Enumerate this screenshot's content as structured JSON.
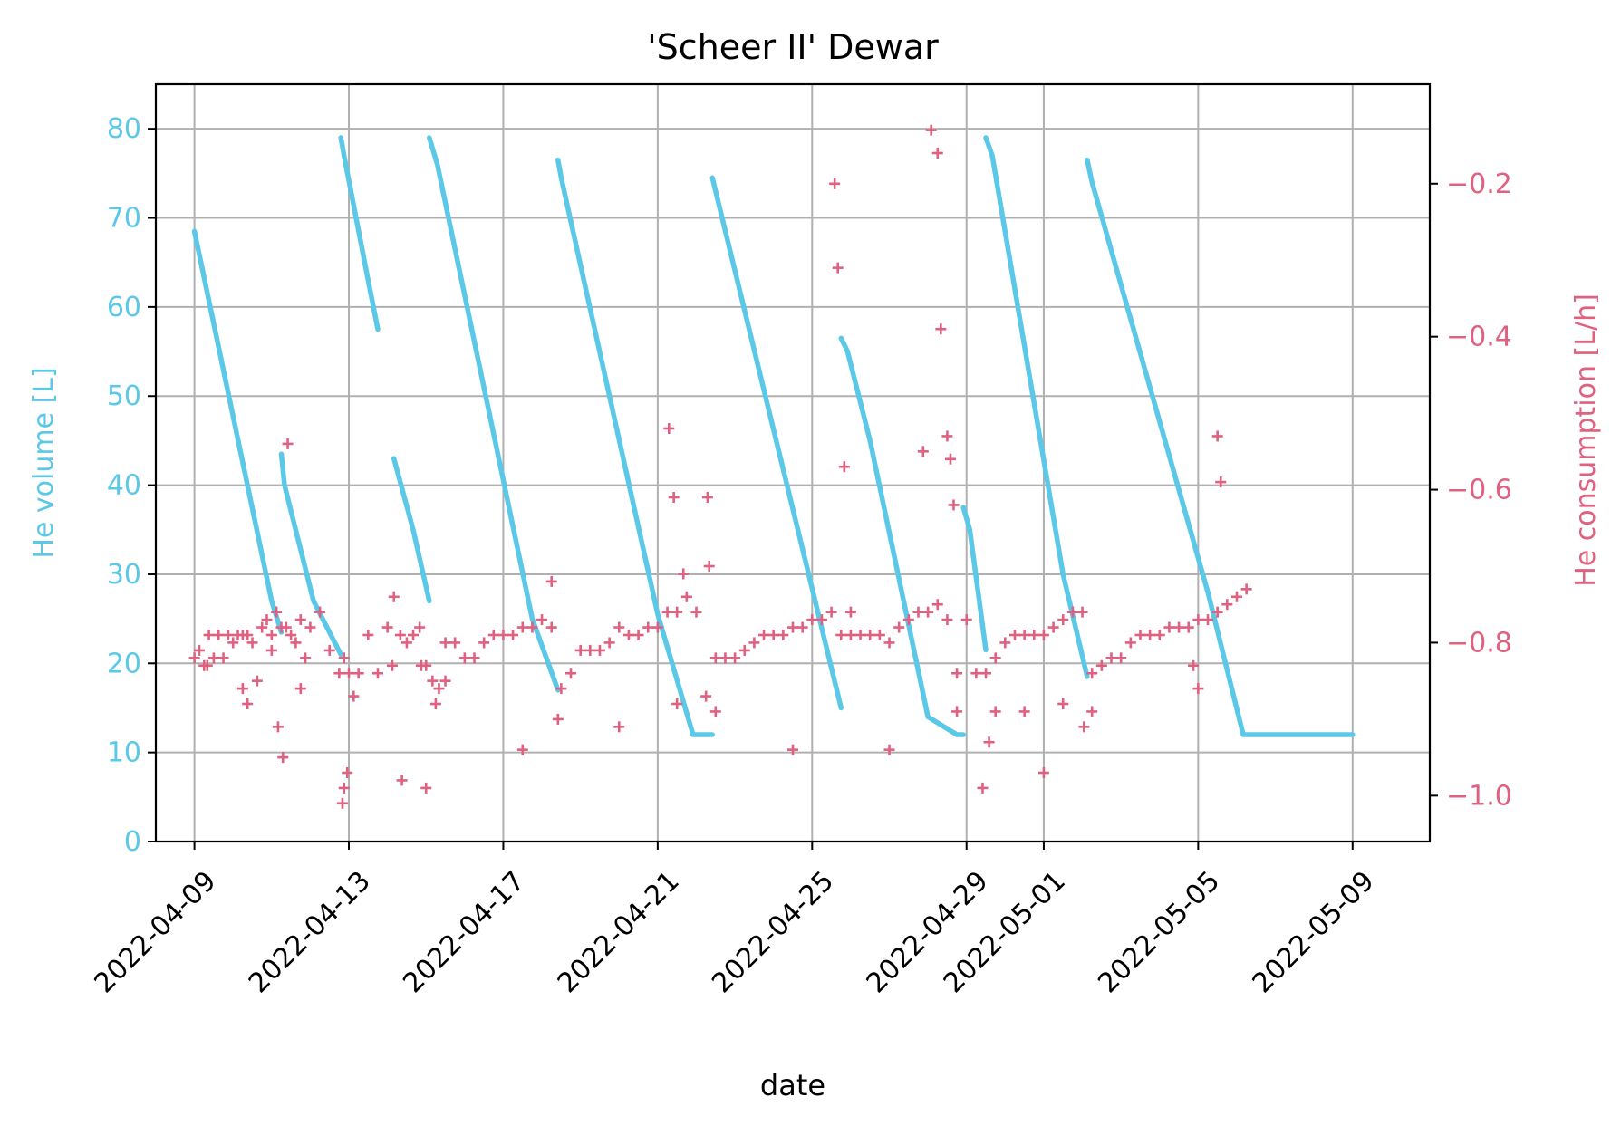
{
  "chart_data": {
    "type": "scatter",
    "title": "'Scheer II' Dewar",
    "xlabel": "date",
    "ylabel_left": "He volume [L]",
    "ylabel_right": "He consumption [L/h]",
    "x_axis": {
      "type": "date",
      "range": [
        "2022-04-08T00:00",
        "2022-05-11T00:00"
      ],
      "ticks": [
        "2022-04-09",
        "2022-04-13",
        "2022-04-17",
        "2022-04-21",
        "2022-04-25",
        "2022-04-29",
        "2022-05-01",
        "2022-05-05",
        "2022-05-09"
      ]
    },
    "y_left": {
      "range": [
        0,
        85
      ],
      "ticks": [
        "0",
        "10",
        "20",
        "30",
        "40",
        "50",
        "60",
        "70",
        "80"
      ]
    },
    "y_right": {
      "range": [
        -1.06,
        -0.07
      ],
      "ticks": [
        "−1.0",
        "−0.8",
        "−0.6",
        "−0.4",
        "−0.2"
      ]
    },
    "grid": true,
    "colors": {
      "volume": "#5bc8e8",
      "consumption": "#e06080",
      "text": "#000000",
      "grid": "#b0b0b0"
    },
    "series": [
      {
        "axis": "left",
        "marker": "dot",
        "color": "#5bc8e8",
        "segments": [
          {
            "x": [
              "2022-04-09T00:00",
              "2022-04-11T00:00",
              "2022-04-11T06:00"
            ],
            "y": [
              68.5,
              27,
              23.5
            ]
          },
          {
            "x": [
              "2022-04-11T06:00",
              "2022-04-11T08:00",
              "2022-04-12T02:00",
              "2022-04-12T19:00"
            ],
            "y": [
              43.5,
              40,
              27,
              21
            ]
          },
          {
            "x": [
              "2022-04-12T19:00",
              "2022-04-12T21:00",
              "2022-04-13T12:00",
              "2022-04-13T18:00"
            ],
            "y": [
              79,
              77,
              63,
              57.5
            ]
          },
          {
            "x": [
              "2022-04-14T04:00",
              "2022-04-14T16:00",
              "2022-04-15T02:00"
            ],
            "y": [
              43,
              35,
              27
            ]
          },
          {
            "x": [
              "2022-04-15T02:00",
              "2022-04-15T07:00",
              "2022-04-17T18:00",
              "2022-04-18T10:00"
            ],
            "y": [
              79,
              76,
              25,
              17
            ]
          },
          {
            "x": [
              "2022-04-18T10:00",
              "2022-04-18T12:00",
              "2022-04-21T00:00",
              "2022-04-21T22:00"
            ],
            "y": [
              76.5,
              74.5,
              25.5,
              12
            ]
          },
          {
            "x": [
              "2022-04-21T22:00",
              "2022-04-22T10:00"
            ],
            "y": [
              12,
              12
            ]
          },
          {
            "x": [
              "2022-04-22T10:00",
              "2022-04-22T12:00",
              "2022-04-25T18:00"
            ],
            "y": [
              74.5,
              73,
              15
            ]
          },
          {
            "x": [
              "2022-04-25T18:00",
              "2022-04-25T22:00",
              "2022-04-26T12:00",
              "2022-04-28T00:00",
              "2022-04-28T18:00"
            ],
            "y": [
              56.5,
              55,
              45,
              14,
              12
            ]
          },
          {
            "x": [
              "2022-04-28T18:00",
              "2022-04-28T22:00"
            ],
            "y": [
              12,
              12
            ]
          },
          {
            "x": [
              "2022-04-28T22:00",
              "2022-04-29T02:00",
              "2022-04-29T12:00"
            ],
            "y": [
              37.5,
              35,
              21.5
            ]
          },
          {
            "x": [
              "2022-04-29T12:00",
              "2022-04-29T16:00",
              "2022-05-01T12:00",
              "2022-05-02T03:00"
            ],
            "y": [
              79,
              77,
              30,
              18.5
            ]
          },
          {
            "x": [
              "2022-05-02T03:00",
              "2022-05-02T06:00",
              "2022-05-05T06:00",
              "2022-05-06T04:00"
            ],
            "y": [
              76.5,
              74,
              28,
              12
            ]
          },
          {
            "x": [
              "2022-05-06T04:00",
              "2022-05-09T00:00"
            ],
            "y": [
              12,
              12
            ]
          }
        ]
      },
      {
        "axis": "right",
        "marker": "plus",
        "color": "#e06080",
        "x": [
          "2022-04-09T00:00",
          "2022-04-09T03:00",
          "2022-04-09T06:00",
          "2022-04-09T09:00",
          "2022-04-09T12:00",
          "2022-04-09T15:00",
          "2022-04-09T18:00",
          "2022-04-09T21:00",
          "2022-04-10T00:00",
          "2022-04-10T03:00",
          "2022-04-10T06:00",
          "2022-04-10T09:00",
          "2022-04-10T12:00",
          "2022-04-10T15:00",
          "2022-04-10T18:00",
          "2022-04-10T21:00",
          "2022-04-11T00:00",
          "2022-04-11T03:00",
          "2022-04-11T06:00",
          "2022-04-11T09:00",
          "2022-04-11T12:00",
          "2022-04-11T15:00",
          "2022-04-11T18:00",
          "2022-04-11T21:00",
          "2022-04-12T00:00",
          "2022-04-12T06:00",
          "2022-04-12T12:00",
          "2022-04-12T18:00",
          "2022-04-12T21:00",
          "2022-04-13T00:00",
          "2022-04-13T06:00",
          "2022-04-13T12:00",
          "2022-04-13T18:00",
          "2022-04-14T00:00",
          "2022-04-14T04:00",
          "2022-04-14T08:00",
          "2022-04-14T12:00",
          "2022-04-14T16:00",
          "2022-04-14T20:00",
          "2022-04-15T00:00",
          "2022-04-15T04:00",
          "2022-04-15T08:00",
          "2022-04-15T12:00",
          "2022-04-15T18:00",
          "2022-04-16T00:00",
          "2022-04-16T06:00",
          "2022-04-16T12:00",
          "2022-04-16T18:00",
          "2022-04-17T00:00",
          "2022-04-17T06:00",
          "2022-04-17T12:00",
          "2022-04-17T18:00",
          "2022-04-18T00:00",
          "2022-04-18T06:00",
          "2022-04-18T12:00",
          "2022-04-18T18:00",
          "2022-04-19T00:00",
          "2022-04-19T06:00",
          "2022-04-19T12:00",
          "2022-04-19T18:00",
          "2022-04-20T00:00",
          "2022-04-20T06:00",
          "2022-04-20T12:00",
          "2022-04-20T18:00",
          "2022-04-21T00:00",
          "2022-04-21T06:00",
          "2022-04-21T12:00",
          "2022-04-21T18:00",
          "2022-04-22T00:00",
          "2022-04-22T06:00",
          "2022-04-22T12:00",
          "2022-04-22T18:00",
          "2022-04-23T00:00",
          "2022-04-23T06:00",
          "2022-04-23T12:00",
          "2022-04-23T18:00",
          "2022-04-24T00:00",
          "2022-04-24T06:00",
          "2022-04-24T12:00",
          "2022-04-24T18:00",
          "2022-04-25T00:00",
          "2022-04-25T06:00",
          "2022-04-25T12:00",
          "2022-04-25T18:00",
          "2022-04-26T00:00",
          "2022-04-26T06:00",
          "2022-04-26T12:00",
          "2022-04-26T18:00",
          "2022-04-27T00:00",
          "2022-04-27T06:00",
          "2022-04-27T12:00",
          "2022-04-27T18:00",
          "2022-04-28T00:00",
          "2022-04-28T06:00",
          "2022-04-28T12:00",
          "2022-04-28T18:00",
          "2022-04-29T00:00",
          "2022-04-29T06:00",
          "2022-04-29T12:00",
          "2022-04-29T18:00",
          "2022-04-30T00:00",
          "2022-04-30T06:00",
          "2022-04-30T12:00",
          "2022-04-30T18:00",
          "2022-05-01T00:00",
          "2022-05-01T06:00",
          "2022-05-01T12:00",
          "2022-05-01T18:00",
          "2022-05-02T00:00",
          "2022-05-02T06:00",
          "2022-05-02T12:00",
          "2022-05-02T18:00",
          "2022-05-03T00:00",
          "2022-05-03T06:00",
          "2022-05-03T12:00",
          "2022-05-03T18:00",
          "2022-05-04T00:00",
          "2022-05-04T06:00",
          "2022-05-04T12:00",
          "2022-05-04T18:00",
          "2022-05-05T00:00",
          "2022-05-05T06:00",
          "2022-05-05T12:00",
          "2022-05-05T18:00",
          "2022-05-06T00:00",
          "2022-05-06T06:00"
        ],
        "y": [
          -0.82,
          -0.81,
          -0.83,
          -0.79,
          -0.82,
          -0.79,
          -0.82,
          -0.79,
          -0.8,
          -0.79,
          -0.79,
          -0.79,
          -0.8,
          -0.85,
          -0.78,
          -0.77,
          -0.79,
          -0.76,
          -0.78,
          -0.78,
          -0.79,
          -0.8,
          -0.77,
          -0.82,
          -0.78,
          -0.76,
          -0.81,
          -0.84,
          -0.82,
          -0.84,
          -0.84,
          -0.79,
          -0.84,
          -0.78,
          -0.74,
          -0.79,
          -0.8,
          -0.79,
          -0.78,
          -0.83,
          -0.85,
          -0.86,
          -0.8,
          -0.8,
          -0.82,
          -0.82,
          -0.8,
          -0.79,
          -0.79,
          -0.79,
          -0.78,
          -0.78,
          -0.77,
          -0.78,
          -0.86,
          -0.84,
          -0.81,
          -0.81,
          -0.81,
          -0.8,
          -0.78,
          -0.79,
          -0.79,
          -0.78,
          -0.78,
          -0.76,
          -0.76,
          -0.74,
          -0.76,
          -0.87,
          -0.82,
          -0.82,
          -0.82,
          -0.81,
          -0.8,
          -0.79,
          -0.79,
          -0.79,
          -0.78,
          -0.78,
          -0.77,
          -0.77,
          -0.76,
          -0.79,
          -0.79,
          -0.79,
          -0.79,
          -0.79,
          -0.8,
          -0.78,
          -0.77,
          -0.76,
          -0.76,
          -0.75,
          -0.77,
          -0.84,
          -0.77,
          -0.84,
          -0.84,
          -0.82,
          -0.8,
          -0.79,
          -0.79,
          -0.79,
          -0.79,
          -0.78,
          -0.77,
          -0.76,
          -0.76,
          -0.84,
          -0.83,
          -0.82,
          -0.82,
          -0.8,
          -0.79,
          -0.79,
          -0.79,
          -0.78,
          -0.78,
          -0.78,
          -0.77,
          -0.77,
          -0.76,
          -0.75,
          -0.74,
          -0.73
        ]
      },
      {
        "axis": "right",
        "marker": "plus",
        "color": "#e06080",
        "x": [
          "2022-04-09T08:00",
          "2022-04-10T06:00",
          "2022-04-10T09:00",
          "2022-04-11T00:00",
          "2022-04-11T04:00",
          "2022-04-11T07:00",
          "2022-04-11T10:00",
          "2022-04-11T18:00",
          "2022-04-12T20:00",
          "2022-04-12T21:00",
          "2022-04-12T23:00",
          "2022-04-13T03:00",
          "2022-04-14T03:00",
          "2022-04-14T09:00",
          "2022-04-14T21:00",
          "2022-04-15T00:00",
          "2022-04-15T06:00",
          "2022-04-15T12:00",
          "2022-04-17T12:00",
          "2022-04-18T06:00",
          "2022-04-18T10:00",
          "2022-04-20T00:00",
          "2022-04-21T07:00",
          "2022-04-21T10:00",
          "2022-04-21T12:00",
          "2022-04-21T16:00",
          "2022-04-22T07:00",
          "2022-04-22T08:00",
          "2022-04-22T12:00",
          "2022-04-24T12:00",
          "2022-04-25T14:00",
          "2022-04-25T16:00",
          "2022-04-25T20:00",
          "2022-04-26T00:00",
          "2022-04-27T00:00",
          "2022-04-27T21:00",
          "2022-04-28T02:00",
          "2022-04-28T06:00",
          "2022-04-28T08:00",
          "2022-04-28T12:00",
          "2022-04-28T14:00",
          "2022-04-28T16:00",
          "2022-04-28T18:00",
          "2022-04-29T10:00",
          "2022-04-29T14:00",
          "2022-04-29T18:00",
          "2022-04-30T12:00",
          "2022-05-01T00:00",
          "2022-05-01T12:00",
          "2022-05-02T01:00",
          "2022-05-02T06:00",
          "2022-05-04T21:00",
          "2022-05-05T00:00",
          "2022-05-05T12:00",
          "2022-05-05T14:00"
        ],
        "y": [
          -0.83,
          -0.86,
          -0.88,
          -0.81,
          -0.91,
          -0.95,
          -0.54,
          -0.86,
          -1.01,
          -0.99,
          -0.97,
          -0.87,
          -0.83,
          -0.98,
          -0.83,
          -0.99,
          -0.88,
          -0.85,
          -0.94,
          -0.72,
          -0.9,
          -0.91,
          -0.52,
          -0.61,
          -0.88,
          -0.71,
          -0.61,
          -0.7,
          -0.89,
          -0.94,
          -0.2,
          -0.31,
          -0.57,
          -0.76,
          -0.94,
          -0.55,
          -0.13,
          -0.16,
          -0.39,
          -0.53,
          -0.56,
          -0.62,
          -0.89,
          -0.99,
          -0.93,
          -0.89,
          -0.89,
          -0.97,
          -0.88,
          -0.91,
          -0.89,
          -0.83,
          -0.86,
          -0.53,
          -0.59
        ]
      }
    ]
  }
}
